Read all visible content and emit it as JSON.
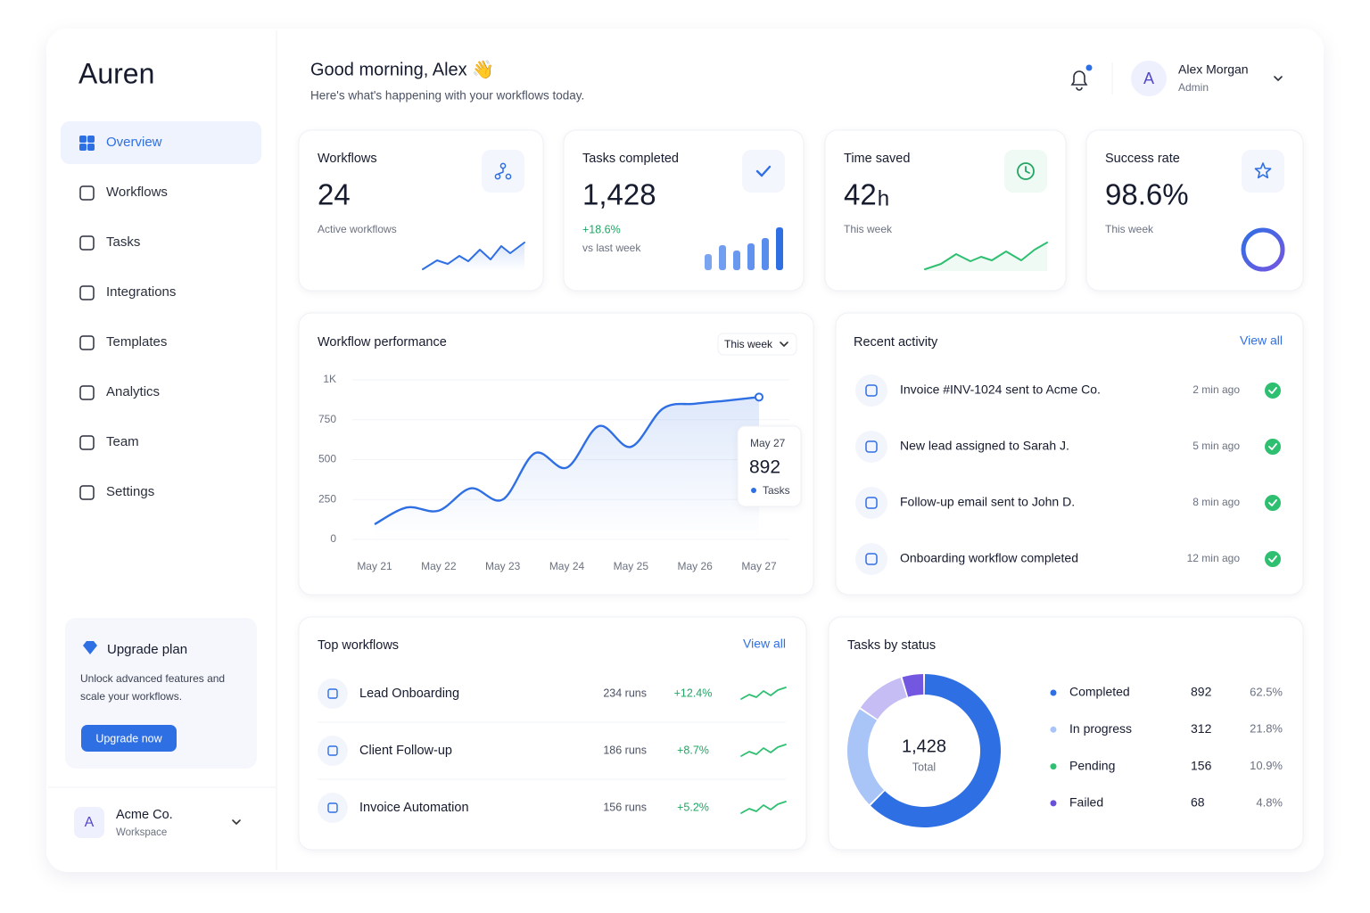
{
  "sidebar": {
    "brand": "Auren",
    "nav": [
      "Overview",
      "Workflows",
      "Tasks",
      "Integrations",
      "Templates",
      "Analytics",
      "Team",
      "Settings"
    ],
    "upgrade": {
      "title": "Upgrade plan",
      "text": [
        "Unlock advanced features and",
        "scale your workflows."
      ],
      "button": "Upgrade now"
    },
    "workspace": {
      "avatar": "A",
      "name": "Acme Co.",
      "label": "Workspace"
    }
  },
  "header": {
    "greeting": "Good morning, Alex 👋",
    "subtitle": "Here's what's happening with your workflows today.",
    "user": {
      "avatar": "A",
      "name": "Alex Morgan",
      "role": "Admin"
    }
  },
  "kpis": [
    {
      "title": "Workflows",
      "value": "24",
      "caption": "Active workflows"
    },
    {
      "title": "Tasks completed",
      "value": "1,428",
      "change": "+18.6%",
      "caption": "vs last week"
    },
    {
      "title": "Time saved",
      "value": "42",
      "unit": "h",
      "caption": "This week"
    },
    {
      "title": "Success rate",
      "value": "98.6%",
      "caption": "This week"
    }
  ],
  "chart_data": [
    {
      "type": "line",
      "title": "Workflow performance",
      "period": "This week",
      "categories": [
        "May 21",
        null,
        "May 22",
        null,
        "May 23",
        null,
        "May 24",
        null,
        "May 25",
        null,
        "May 26",
        null,
        "May 27"
      ],
      "series": [
        {
          "name": "Tasks",
          "color": "#2f6fe4",
          "values": [
            95,
            200,
            180,
            320,
            250,
            540,
            450,
            710,
            580,
            820,
            850,
            870,
            892
          ]
        }
      ],
      "ylim": [
        0,
        1000
      ],
      "yticks": [
        0,
        250,
        500,
        750,
        {
          "value": 1000,
          "label": "1K"
        }
      ],
      "grid": true
    },
    {
      "type": "donut",
      "title": "Tasks by status",
      "categories": [
        "Completed",
        "In progress",
        "Pending",
        "Failed"
      ],
      "values": [
        892,
        312,
        156,
        68
      ],
      "shares": [
        "62.5%",
        "21.8%",
        "10.9%",
        "4.8%"
      ],
      "colors": [
        "#2f6fe4",
        "#a9c4f6",
        "#c6bdf4",
        "#7457e0"
      ],
      "legend_colors": [
        "#2f6fe4",
        "#a9c4f6",
        "#2fbf71",
        "#6a4fd8"
      ],
      "center_label": "1,428",
      "center_caption": "Total"
    }
  ],
  "recent_activity": {
    "title": "Recent activity",
    "link": "View all",
    "items": [
      {
        "text": "Invoice #INV-1024 sent to Acme Co.",
        "time": "2 min ago"
      },
      {
        "text": "New lead assigned to Sarah J.",
        "time": "5 min ago"
      },
      {
        "text": "Follow-up email sent to John D.",
        "time": "8 min ago"
      },
      {
        "text": "Onboarding workflow completed",
        "time": "12 min ago"
      }
    ]
  },
  "top_workflows": {
    "title": "Top workflows",
    "link": "View all",
    "rows": [
      {
        "name": "Lead Onboarding",
        "runs": "234 runs",
        "change": "+12.4%"
      },
      {
        "name": "Client Follow-up",
        "runs": "186 runs",
        "change": "+8.7%"
      },
      {
        "name": "Invoice Automation",
        "runs": "156 runs",
        "change": "+5.2%"
      }
    ]
  }
}
